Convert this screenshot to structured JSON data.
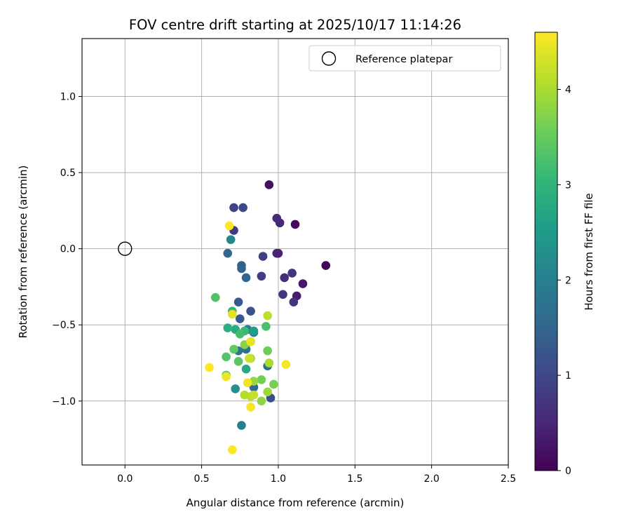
{
  "chart_data": {
    "type": "scatter",
    "title": "FOV centre drift starting at 2025/10/17 11:14:26",
    "xlabel": "Angular distance from reference (arcmin)",
    "ylabel": "Rotation from reference (arcmin)",
    "xlim": [
      -0.28,
      2.5
    ],
    "ylim": [
      -1.42,
      1.38
    ],
    "xticks": [
      0.0,
      0.5,
      1.0,
      1.5,
      2.0,
      2.5
    ],
    "xtick_labels": [
      "0.0",
      "0.5",
      "1.0",
      "1.5",
      "2.0",
      "2.5"
    ],
    "yticks": [
      1.0,
      0.5,
      0.0,
      -0.5,
      -1.0
    ],
    "ytick_labels": [
      "1.0",
      "0.5",
      "0.0",
      "−0.5",
      "−1.0"
    ],
    "grid": true,
    "legend": {
      "position": "top-right",
      "entries": [
        "Reference platepar"
      ]
    },
    "reference_point": {
      "x": 0.0,
      "y": 0.0,
      "label": "Reference platepar",
      "marker": "open-circle"
    },
    "colorbar": {
      "label": "Hours from first FF file",
      "range": [
        0,
        4.6
      ],
      "ticks": [
        0,
        1,
        2,
        3,
        4
      ],
      "tick_labels": [
        "0",
        "1",
        "2",
        "3",
        "4"
      ],
      "colormap": [
        "#440154",
        "#482878",
        "#3e4989",
        "#31688e",
        "#26828e",
        "#1f9e89",
        "#35b779",
        "#6ece58",
        "#b5de2b",
        "#fde725"
      ]
    },
    "points": [
      {
        "x": 1.31,
        "y": -0.11,
        "h": 0.05
      },
      {
        "x": 1.11,
        "y": 0.16,
        "h": 0.1
      },
      {
        "x": 0.94,
        "y": 0.42,
        "h": 0.2
      },
      {
        "x": 1.16,
        "y": -0.23,
        "h": 0.3
      },
      {
        "x": 1.12,
        "y": -0.31,
        "h": 0.35
      },
      {
        "x": 1.0,
        "y": -0.03,
        "h": 0.4
      },
      {
        "x": 0.99,
        "y": -0.03,
        "h": 0.45
      },
      {
        "x": 1.01,
        "y": 0.17,
        "h": 0.5
      },
      {
        "x": 0.99,
        "y": 0.2,
        "h": 0.55
      },
      {
        "x": 1.04,
        "y": -0.19,
        "h": 0.6
      },
      {
        "x": 1.1,
        "y": -0.35,
        "h": 0.65
      },
      {
        "x": 1.09,
        "y": -0.16,
        "h": 0.7
      },
      {
        "x": 1.03,
        "y": -0.3,
        "h": 0.75
      },
      {
        "x": 0.71,
        "y": 0.12,
        "h": 0.8
      },
      {
        "x": 0.89,
        "y": -0.18,
        "h": 0.85
      },
      {
        "x": 0.9,
        "y": -0.05,
        "h": 0.9
      },
      {
        "x": 0.71,
        "y": 0.27,
        "h": 0.95
      },
      {
        "x": 0.77,
        "y": 0.27,
        "h": 1.0
      },
      {
        "x": 0.95,
        "y": -0.98,
        "h": 1.1
      },
      {
        "x": 0.82,
        "y": -0.41,
        "h": 1.2
      },
      {
        "x": 0.75,
        "y": -0.46,
        "h": 1.25
      },
      {
        "x": 0.74,
        "y": -0.35,
        "h": 1.3
      },
      {
        "x": 0.76,
        "y": -0.11,
        "h": 1.4
      },
      {
        "x": 0.76,
        "y": -0.13,
        "h": 1.45
      },
      {
        "x": 0.79,
        "y": -0.19,
        "h": 1.5
      },
      {
        "x": 0.67,
        "y": -0.03,
        "h": 1.55
      },
      {
        "x": 0.84,
        "y": -0.91,
        "h": 1.6
      },
      {
        "x": 0.93,
        "y": -0.77,
        "h": 1.7
      },
      {
        "x": 0.79,
        "y": -0.66,
        "h": 1.75
      },
      {
        "x": 0.74,
        "y": -0.67,
        "h": 1.8
      },
      {
        "x": 0.8,
        "y": -0.53,
        "h": 1.85
      },
      {
        "x": 0.84,
        "y": -0.55,
        "h": 1.9
      },
      {
        "x": 0.76,
        "y": -1.16,
        "h": 1.95
      },
      {
        "x": 0.69,
        "y": 0.06,
        "h": 2.1
      },
      {
        "x": 0.72,
        "y": -0.92,
        "h": 2.3
      },
      {
        "x": 0.84,
        "y": -0.54,
        "h": 2.6
      },
      {
        "x": 0.79,
        "y": -0.79,
        "h": 2.75
      },
      {
        "x": 0.72,
        "y": -0.53,
        "h": 2.8
      },
      {
        "x": 0.67,
        "y": -0.52,
        "h": 2.9
      },
      {
        "x": 0.7,
        "y": -0.41,
        "h": 3.0
      },
      {
        "x": 0.78,
        "y": -0.54,
        "h": 3.1
      },
      {
        "x": 0.75,
        "y": -0.56,
        "h": 3.2
      },
      {
        "x": 0.92,
        "y": -0.51,
        "h": 3.25
      },
      {
        "x": 0.59,
        "y": -0.32,
        "h": 3.3
      },
      {
        "x": 0.66,
        "y": -0.71,
        "h": 3.35
      },
      {
        "x": 0.74,
        "y": -0.74,
        "h": 3.4
      },
      {
        "x": 0.71,
        "y": -0.66,
        "h": 3.45
      },
      {
        "x": 0.66,
        "y": -0.83,
        "h": 3.5
      },
      {
        "x": 0.93,
        "y": -0.67,
        "h": 3.55
      },
      {
        "x": 0.89,
        "y": -0.86,
        "h": 3.6
      },
      {
        "x": 0.97,
        "y": -0.89,
        "h": 3.65
      },
      {
        "x": 0.82,
        "y": -0.61,
        "h": 3.7
      },
      {
        "x": 0.78,
        "y": -0.63,
        "h": 3.75
      },
      {
        "x": 0.89,
        "y": -1.0,
        "h": 3.8
      },
      {
        "x": 0.84,
        "y": -0.87,
        "h": 3.85
      },
      {
        "x": 0.93,
        "y": -0.94,
        "h": 3.9
      },
      {
        "x": 0.82,
        "y": -0.72,
        "h": 3.95
      },
      {
        "x": 0.94,
        "y": -0.75,
        "h": 4.0
      },
      {
        "x": 0.78,
        "y": -0.96,
        "h": 4.05
      },
      {
        "x": 0.82,
        "y": -0.97,
        "h": 4.1
      },
      {
        "x": 0.93,
        "y": -0.44,
        "h": 4.15
      },
      {
        "x": 0.84,
        "y": -0.96,
        "h": 4.2
      },
      {
        "x": 0.81,
        "y": -0.72,
        "h": 4.25
      },
      {
        "x": 0.7,
        "y": -0.43,
        "h": 4.4
      },
      {
        "x": 0.82,
        "y": -0.61,
        "h": 4.45
      },
      {
        "x": 0.66,
        "y": -0.84,
        "h": 4.5
      },
      {
        "x": 0.8,
        "y": -0.88,
        "h": 4.5
      },
      {
        "x": 0.82,
        "y": -1.04,
        "h": 4.55
      },
      {
        "x": 1.05,
        "y": -0.76,
        "h": 4.55
      },
      {
        "x": 0.55,
        "y": -0.78,
        "h": 4.6
      },
      {
        "x": 0.68,
        "y": 0.15,
        "h": 4.6
      },
      {
        "x": 0.7,
        "y": -1.32,
        "h": 4.6
      }
    ]
  }
}
